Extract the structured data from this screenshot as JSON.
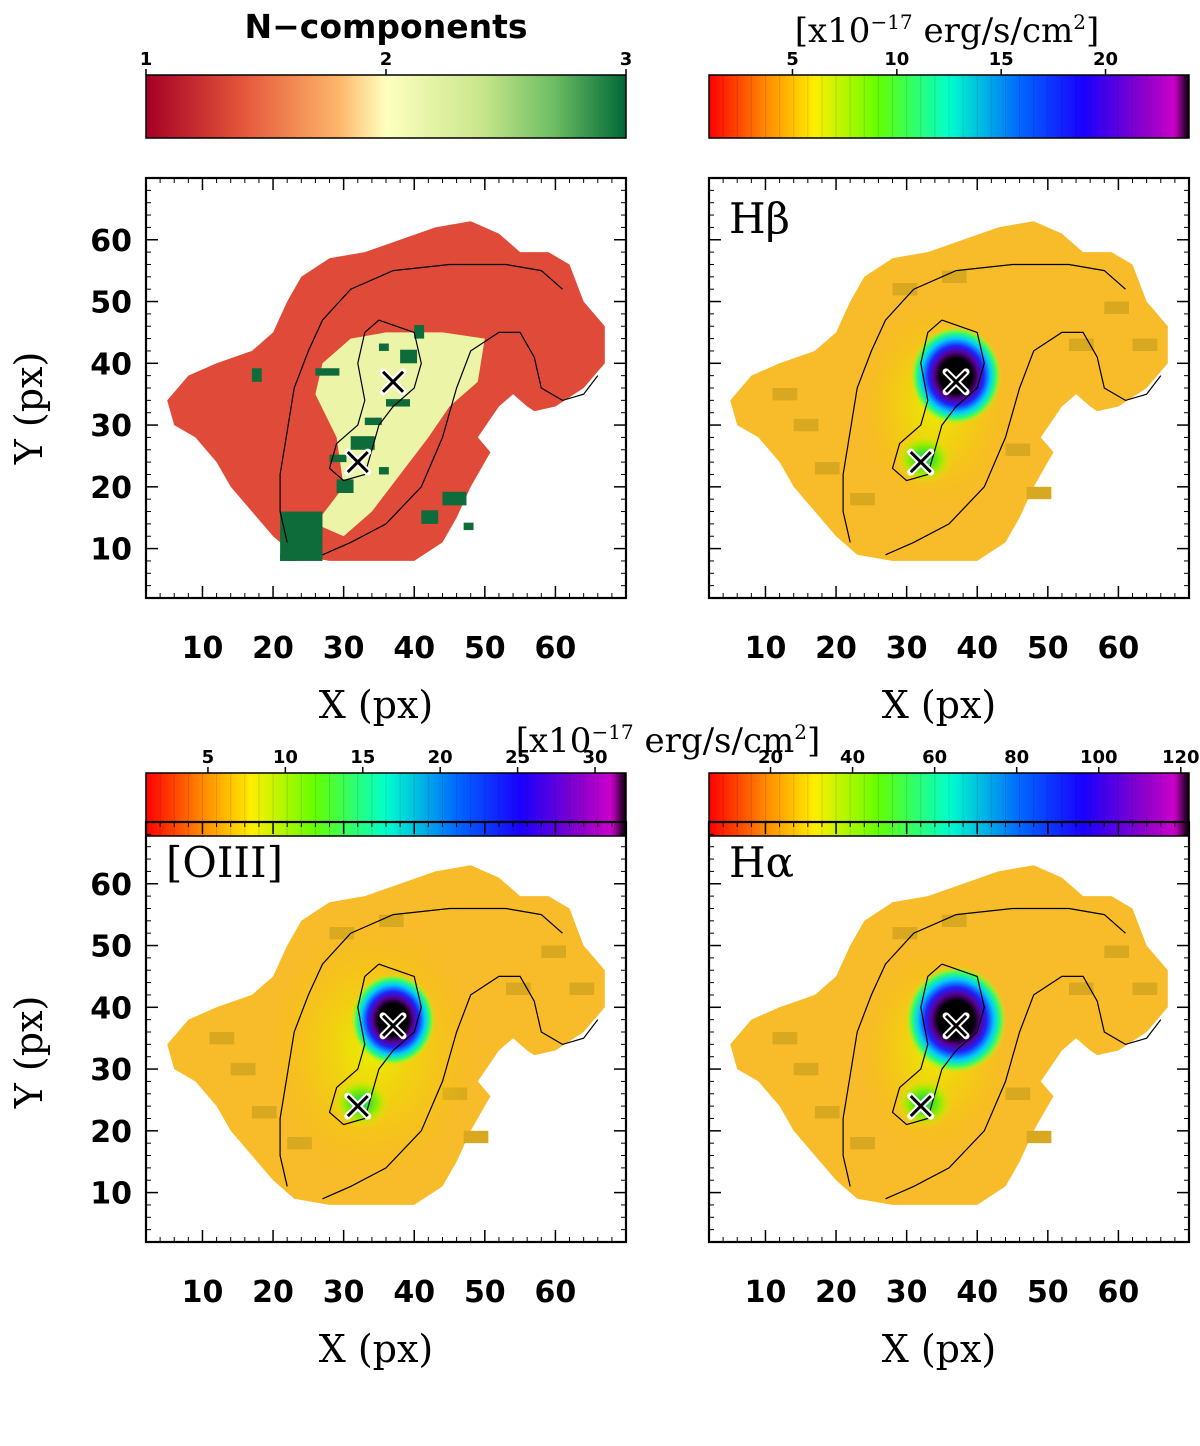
{
  "figure": {
    "colorbars": {
      "ncomp": {
        "title": "N−components",
        "ticks": [
          "1",
          "2",
          "3"
        ]
      },
      "flux_top": {
        "title_prefix": "[x10",
        "title_exp": "−17",
        "title_mid": " erg/s/cm",
        "title_sup": "2",
        "title_suffix": "]",
        "ticks": [
          "5",
          "10",
          "15",
          "20"
        ]
      },
      "flux_shared": {
        "title_prefix": "[x10",
        "title_exp": "−17",
        "title_mid": " erg/s/cm",
        "title_sup": "2",
        "title_suffix": "]"
      },
      "oiii": {
        "ticks": [
          "5",
          "10",
          "15",
          "20",
          "25",
          "30"
        ]
      },
      "halpha": {
        "ticks": [
          "20",
          "40",
          "60",
          "80",
          "100",
          "120"
        ]
      }
    },
    "panels": [
      {
        "label": "",
        "xlabel": "X (px)",
        "ylabel": "Y (px)"
      },
      {
        "label": "Hβ",
        "xlabel": "X (px)",
        "ylabel": ""
      },
      {
        "label": "[OIII]",
        "xlabel": "X (px)",
        "ylabel": "Y (px)"
      },
      {
        "label": "Hα",
        "xlabel": "X (px)",
        "ylabel": ""
      }
    ],
    "x_ticks": [
      "10",
      "20",
      "30",
      "40",
      "50",
      "60"
    ],
    "y_ticks": [
      "10",
      "20",
      "30",
      "40",
      "50",
      "60"
    ]
  },
  "chart_data": [
    {
      "type": "heatmap",
      "title": "N-components",
      "colorbar_range": [
        1,
        3
      ],
      "colorbar_ticks": [
        1,
        2,
        3
      ],
      "xlabel": "X (px)",
      "ylabel": "Y (px)",
      "xlim": [
        2,
        70
      ],
      "ylim": [
        2,
        70
      ],
      "markers": [
        {
          "x": 37,
          "y": 37
        },
        {
          "x": 32,
          "y": 24
        }
      ]
    },
    {
      "type": "heatmap",
      "title": "Hβ",
      "colorbar_unit": "[x10^-17 erg/s/cm^2]",
      "colorbar_range": [
        1,
        24
      ],
      "colorbar_ticks": [
        5,
        10,
        15,
        20
      ],
      "xlabel": "X (px)",
      "ylabel": "",
      "xlim": [
        2,
        70
      ],
      "ylim": [
        2,
        70
      ],
      "peak": {
        "x": 37,
        "y": 38
      },
      "markers": [
        {
          "x": 37,
          "y": 37
        },
        {
          "x": 32,
          "y": 24
        }
      ]
    },
    {
      "type": "heatmap",
      "title": "[OIII]",
      "colorbar_unit": "[x10^-17 erg/s/cm^2]",
      "colorbar_range": [
        1,
        32
      ],
      "colorbar_ticks": [
        5,
        10,
        15,
        20,
        25,
        30
      ],
      "xlabel": "X (px)",
      "ylabel": "Y (px)",
      "xlim": [
        2,
        70
      ],
      "ylim": [
        2,
        70
      ],
      "peak": {
        "x": 37,
        "y": 38
      },
      "markers": [
        {
          "x": 37,
          "y": 37
        },
        {
          "x": 32,
          "y": 24
        }
      ]
    },
    {
      "type": "heatmap",
      "title": "Hα",
      "colorbar_unit": "[x10^-17 erg/s/cm^2]",
      "colorbar_range": [
        5,
        122
      ],
      "colorbar_ticks": [
        20,
        40,
        60,
        80,
        100,
        120
      ],
      "xlabel": "X (px)",
      "ylabel": "",
      "xlim": [
        2,
        70
      ],
      "ylim": [
        2,
        70
      ],
      "peak": {
        "x": 37,
        "y": 38
      },
      "markers": [
        {
          "x": 37,
          "y": 37
        },
        {
          "x": 32,
          "y": 24
        }
      ]
    }
  ]
}
